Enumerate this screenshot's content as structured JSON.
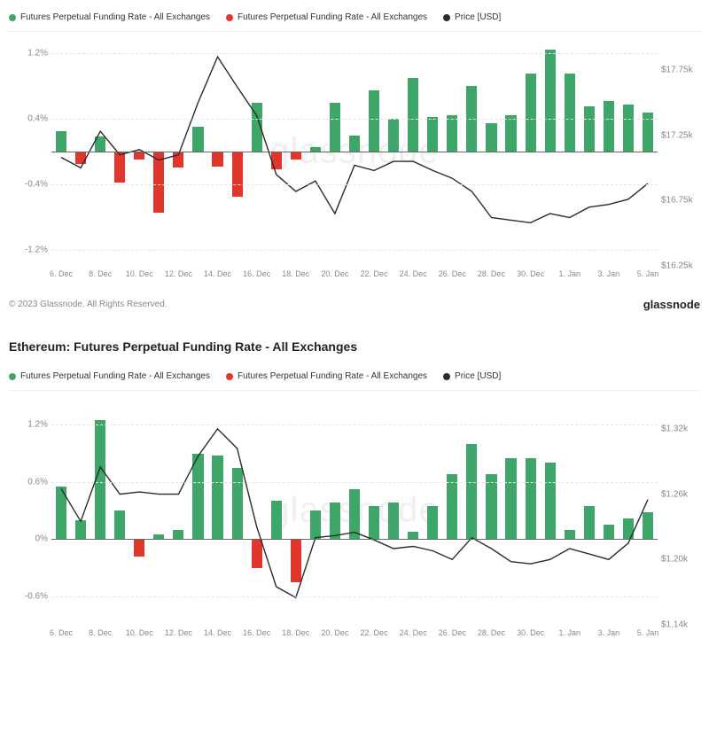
{
  "colors": {
    "positive_bar": "#3fa66a",
    "negative_bar": "#e0362c",
    "price_line": "#2b2b2b",
    "grid": "#eeeeee",
    "grid_dashed": "#e5e5e5",
    "zero_line": "#666666",
    "background": "#ffffff"
  },
  "legend": {
    "pos": "Futures Perpetual Funding Rate - All Exchanges",
    "neg": "Futures Perpetual Funding Rate - All Exchanges",
    "price": "Price [USD]"
  },
  "x_labels": [
    "6. Dec",
    "8. Dec",
    "10. Dec",
    "12. Dec",
    "14. Dec",
    "16. Dec",
    "18. Dec",
    "20. Dec",
    "22. Dec",
    "24. Dec",
    "26. Dec",
    "28. Dec",
    "30. Dec",
    "1. Jan",
    "3. Jan",
    "5. Jan"
  ],
  "chart1": {
    "watermark": "glassnode",
    "y_left": {
      "min": -0.014,
      "max": 0.014,
      "ticks": [
        -0.012,
        -0.004,
        0.004,
        0.012
      ],
      "fmt": "pct3"
    },
    "y_right": {
      "min": 16.25,
      "max": 18.0,
      "ticks": [
        16.25,
        16.75,
        17.25,
        17.75
      ],
      "fmt": "k1"
    },
    "bars": [
      0.0025,
      -0.0015,
      0.0018,
      -0.0038,
      -0.001,
      -0.0075,
      -0.002,
      0.003,
      -0.0018,
      -0.0055,
      0.006,
      -0.0022,
      -0.001,
      0.0005,
      0.006,
      0.002,
      0.0075,
      0.004,
      0.009,
      0.0042,
      0.0044,
      0.008,
      0.0035,
      0.0045,
      0.0095,
      0.0125,
      0.0095,
      0.0055,
      0.0062,
      0.0058,
      0.0048
    ],
    "price": [
      17.08,
      17.0,
      17.28,
      17.1,
      17.14,
      17.06,
      17.1,
      17.5,
      17.85,
      17.62,
      17.4,
      16.95,
      16.82,
      16.9,
      16.65,
      17.02,
      16.98,
      17.05,
      17.05,
      16.98,
      16.92,
      16.82,
      16.62,
      16.6,
      16.58,
      16.65,
      16.62,
      16.7,
      16.72,
      16.76,
      16.88
    ]
  },
  "chart2": {
    "title": "Ethereum: Futures Perpetual Funding Rate - All Exchanges",
    "watermark": "glassnode",
    "y_left": {
      "min": -0.009,
      "max": 0.015,
      "ticks": [
        -0.006,
        0.0,
        0.006,
        0.012
      ],
      "fmt": "pct3z"
    },
    "y_right": {
      "min": 1.14,
      "max": 1.35,
      "ticks": [
        1.14,
        1.2,
        1.26,
        1.32
      ],
      "fmt": "k2"
    },
    "bars": [
      0.0055,
      0.002,
      0.0125,
      0.003,
      -0.0018,
      0.0005,
      0.001,
      0.009,
      0.0088,
      0.0075,
      -0.003,
      0.004,
      -0.0045,
      0.003,
      0.0038,
      0.0052,
      0.0035,
      0.0038,
      0.0008,
      0.0035,
      0.0068,
      0.01,
      0.0068,
      0.0085,
      0.0085,
      0.008,
      0.001,
      0.0035,
      0.0015,
      0.0022,
      0.0028
    ],
    "price": [
      1.265,
      1.235,
      1.285,
      1.26,
      1.262,
      1.26,
      1.26,
      1.295,
      1.32,
      1.302,
      1.23,
      1.175,
      1.165,
      1.22,
      1.222,
      1.225,
      1.218,
      1.21,
      1.212,
      1.208,
      1.2,
      1.22,
      1.21,
      1.198,
      1.196,
      1.2,
      1.21,
      1.205,
      1.2,
      1.215,
      1.255
    ]
  },
  "footer": {
    "copyright": "© 2023 Glassnode. All Rights Reserved.",
    "brand": "glassnode"
  }
}
